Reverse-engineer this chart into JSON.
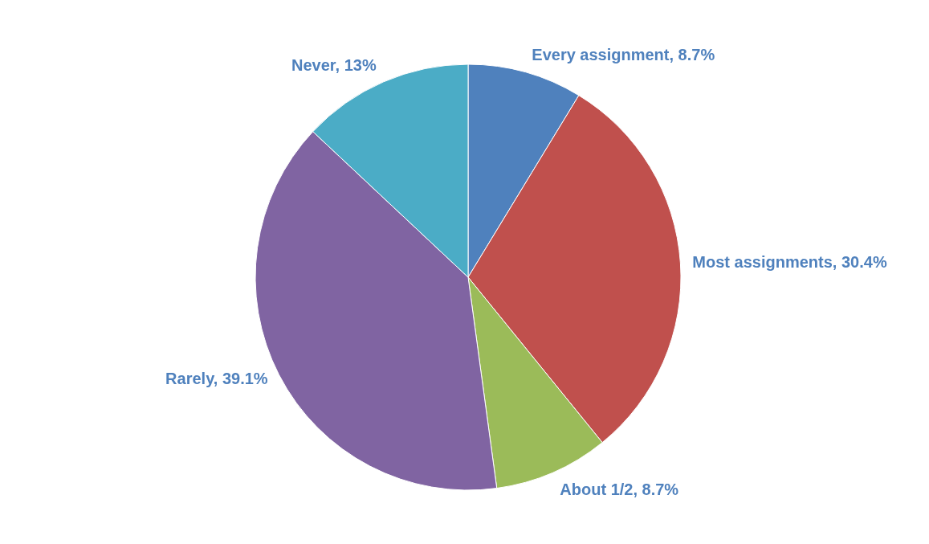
{
  "chart_data": {
    "type": "pie",
    "categories": [
      "Every assignment",
      "Most assignments",
      "About 1/2",
      "Rarely",
      "Never"
    ],
    "values": [
      8.7,
      30.4,
      8.7,
      39.1,
      13
    ],
    "value_labels": [
      "8.7%",
      "30.4%",
      "8.7%",
      "39.1%",
      "13%"
    ],
    "colors": [
      "#4f81bd",
      "#c0504d",
      "#9bbb59",
      "#8064a2",
      "#4bacc6"
    ],
    "legend": false
  }
}
